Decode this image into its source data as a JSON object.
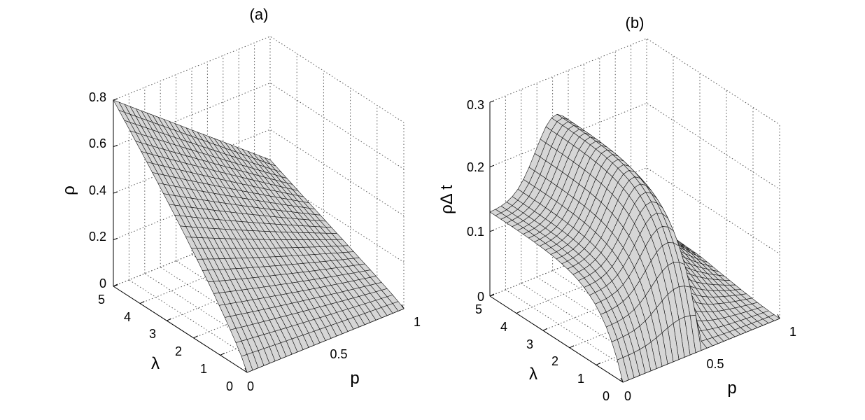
{
  "chart_data": [
    {
      "type": "surface",
      "panel_label": "(a)",
      "xlabel": "p",
      "ylabel": "λ",
      "zlabel": "ρ",
      "xlim": [
        0,
        1
      ],
      "ylim": [
        0,
        5
      ],
      "zlim": [
        0,
        0.8
      ],
      "x_ticks": [
        "0",
        "0.5",
        "1"
      ],
      "y_ticks": [
        "0",
        "1",
        "2",
        "3",
        "4",
        "5"
      ],
      "z_ticks": [
        "0",
        "0.2",
        "0.4",
        "0.6",
        "0.8"
      ],
      "grid": true,
      "corner_values": [
        {
          "p": 0,
          "lambda": 5,
          "value": 0.8
        },
        {
          "p": 1,
          "lambda": 5,
          "value": 0.27
        },
        {
          "p": 0,
          "lambda": 0,
          "value": 0.0
        },
        {
          "p": 1,
          "lambda": 0,
          "value": 0.0
        }
      ]
    },
    {
      "type": "surface",
      "panel_label": "(b)",
      "xlabel": "p",
      "ylabel": "λ",
      "zlabel": "ρΔ t",
      "xlim": [
        0,
        1
      ],
      "ylim": [
        0,
        5
      ],
      "zlim": [
        0,
        0.3
      ],
      "x_ticks": [
        "0",
        "0.5",
        "1"
      ],
      "y_ticks": [
        "0",
        "1",
        "2",
        "3",
        "4",
        "5"
      ],
      "z_ticks": [
        "0",
        "0.1",
        "0.2",
        "0.3"
      ],
      "grid": true,
      "corner_values": [
        {
          "p": 0,
          "lambda": 5,
          "value": 0.13
        },
        {
          "p": 1,
          "lambda": 5,
          "value": 0.02
        },
        {
          "p": 0,
          "lambda": 0,
          "value": 0.0
        },
        {
          "p": 0.5,
          "lambda": 0,
          "value": 0.0
        }
      ]
    }
  ]
}
